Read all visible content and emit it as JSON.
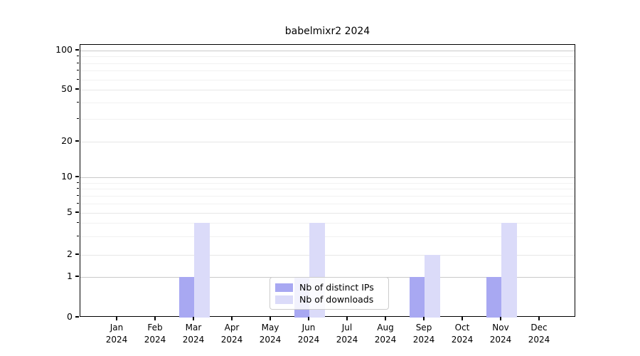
{
  "title": "babelmixr2 2024",
  "chart_data": {
    "type": "bar",
    "title": "babelmixr2 2024",
    "year": "2024",
    "categories": [
      "Jan 2024",
      "Feb 2024",
      "Mar 2024",
      "Apr 2024",
      "May 2024",
      "Jun 2024",
      "Jul 2024",
      "Aug 2024",
      "Sep 2024",
      "Oct 2024",
      "Nov 2024",
      "Dec 2024"
    ],
    "month_labels": [
      "Jan",
      "Feb",
      "Mar",
      "Apr",
      "May",
      "Jun",
      "Jul",
      "Aug",
      "Sep",
      "Oct",
      "Nov",
      "Dec"
    ],
    "series": [
      {
        "name": "Nb of distinct IPs",
        "color": "#a8a8f2",
        "values": [
          0,
          0,
          1,
          0,
          0,
          1,
          0,
          0,
          1,
          0,
          1,
          0
        ]
      },
      {
        "name": "Nb of downloads",
        "color": "#dbdbf9",
        "values": [
          0,
          0,
          4,
          0,
          0,
          4,
          0,
          0,
          2,
          0,
          4,
          0
        ]
      }
    ],
    "xlabel": "",
    "ylabel": "",
    "yscale": "log-like (0, then logarithmic above 1)",
    "ylim": [
      0,
      130
    ],
    "yticks_labeled": [
      0,
      1,
      2,
      5,
      10,
      20,
      50,
      100
    ],
    "yticks_minor": [
      3,
      4,
      6,
      7,
      8,
      9,
      30,
      40,
      60,
      70,
      80,
      90
    ],
    "grid": true,
    "legend_position": "lower center"
  }
}
